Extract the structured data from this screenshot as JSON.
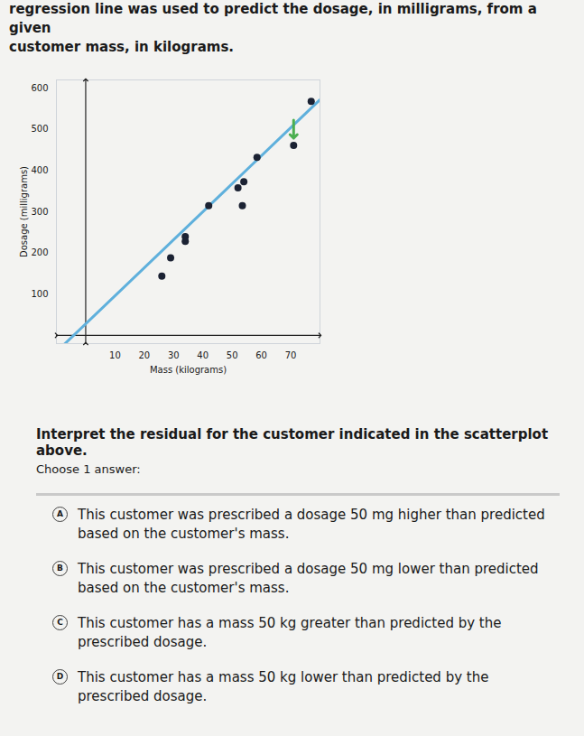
{
  "header": {
    "line1": "regression line was used to predict the dosage, in milligrams, from a given",
    "line2": "customer mass, in kilograms."
  },
  "chart_data": {
    "type": "scatter",
    "x_label": "Mass (kilograms)",
    "y_label": "Dosage (milligrams)",
    "x": [
      26,
      29,
      34,
      34,
      42,
      52,
      53.5,
      54,
      58.5,
      71,
      77
    ],
    "values": [
      144,
      188,
      240,
      228,
      315,
      358,
      315,
      373,
      432,
      461,
      568
    ],
    "regression": {
      "x": [
        -10,
        80
      ],
      "y": [
        -40,
        572
      ]
    },
    "indicated_index": 9,
    "color": "#1b2233",
    "xlim": [
      -10,
      80
    ],
    "ylim": [
      -20,
      620
    ],
    "xticks": [
      10,
      20,
      30,
      40,
      50,
      60,
      70
    ],
    "yticks": [
      100,
      200,
      300,
      400,
      500,
      600
    ],
    "grid": true
  },
  "question": "Interpret the residual for the customer indicated in the scatterplot above.",
  "prompt": "Choose 1 answer:",
  "choices": [
    {
      "letter": "A",
      "text": "This customer was prescribed a dosage 50 mg higher than predicted based on the customer's mass."
    },
    {
      "letter": "B",
      "text": "This customer was prescribed a dosage 50 mg lower than predicted based on the customer's mass."
    },
    {
      "letter": "C",
      "text": "This customer has a mass 50 kg greater than predicted by the prescribed dosage."
    },
    {
      "letter": "D",
      "text": "This customer has a mass 50 kg lower than predicted by the prescribed dosage."
    }
  ]
}
